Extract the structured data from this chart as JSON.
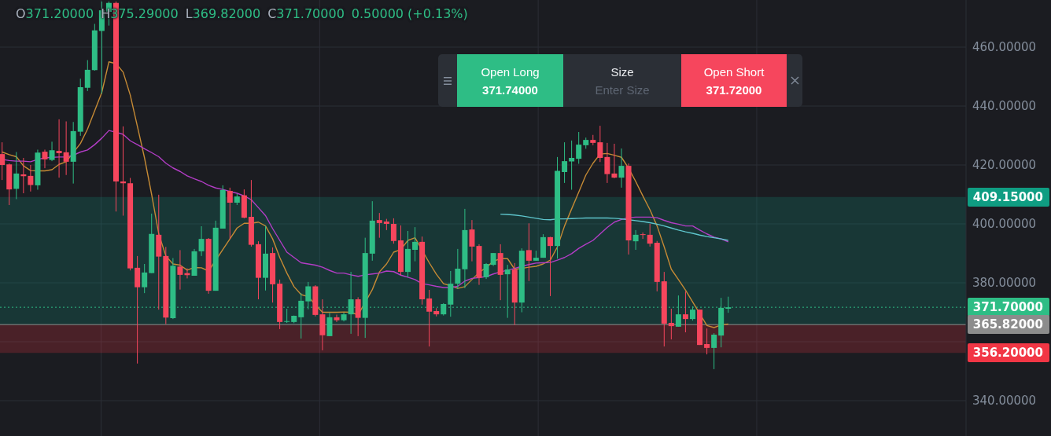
{
  "chart_data": {
    "type": "candlestick",
    "categories": [
      null,
      null,
      null,
      null,
      null,
      null,
      null,
      null,
      null,
      null,
      null,
      null,
      null,
      null,
      null,
      null,
      null,
      null,
      null,
      null,
      null,
      null,
      null,
      null,
      null,
      null,
      null,
      null,
      null,
      null,
      null,
      null,
      null,
      null,
      null,
      null,
      null,
      null,
      null,
      null,
      null,
      null,
      null,
      null,
      null,
      null,
      null,
      null,
      null,
      null,
      null,
      null,
      null,
      null,
      null,
      null,
      null,
      null,
      null,
      null,
      null,
      null,
      null,
      null,
      null,
      null,
      null,
      null,
      null,
      null,
      null,
      null,
      null,
      null,
      null,
      null,
      null,
      null,
      null,
      null,
      null,
      null,
      null,
      null,
      null,
      null,
      null,
      null,
      null,
      null,
      null,
      null,
      null,
      null,
      null,
      null,
      null,
      null,
      null,
      null,
      null,
      null,
      null
    ],
    "ohlc": [
      [
        423.7,
        427.7,
        414.9,
        420.0
      ],
      [
        420.2,
        420.5,
        406.4,
        411.7
      ],
      [
        411.9,
        424.4,
        408.4,
        417.1
      ],
      [
        416.8,
        422.4,
        410.4,
        416.2
      ],
      [
        416.3,
        420.0,
        411.0,
        413.2
      ],
      [
        413.1,
        425.2,
        411.6,
        424.2
      ],
      [
        424.5,
        425.2,
        418.9,
        421.9
      ],
      [
        421.7,
        427.9,
        421.3,
        425.0
      ],
      [
        424.8,
        435.5,
        415.7,
        424.0
      ],
      [
        424.3,
        434.8,
        416.6,
        421.1
      ],
      [
        421.1,
        434.6,
        413.7,
        431.5
      ],
      [
        431.3,
        449.3,
        429.9,
        446.4
      ],
      [
        446.2,
        455.6,
        445.1,
        452.3
      ],
      [
        452.2,
        467.9,
        452.0,
        465.7
      ],
      [
        465.5,
        475.5,
        444.2,
        472.5
      ],
      [
        472.0,
        475.5,
        467.3,
        475.0
      ],
      [
        475.0,
        475.5,
        404.2,
        414.4
      ],
      [
        414.4,
        433.1,
        402.8,
        413.8
      ],
      [
        413.8,
        415.6,
        384.2,
        384.9
      ],
      [
        385.1,
        389.1,
        352.6,
        378.5
      ],
      [
        378.5,
        386.4,
        376.5,
        383.5
      ],
      [
        383.3,
        403.5,
        383.3,
        396.6
      ],
      [
        396.3,
        409.9,
        370.9,
        388.9
      ],
      [
        389.1,
        392.2,
        366.0,
        368.2
      ],
      [
        368.0,
        388.4,
        367.7,
        385.8
      ],
      [
        385.5,
        391.1,
        377.7,
        382.7
      ],
      [
        383.3,
        384.9,
        381.5,
        382.6
      ],
      [
        382.4,
        391.5,
        382.4,
        390.7
      ],
      [
        390.7,
        399.2,
        389.1,
        394.9
      ],
      [
        394.9,
        395.2,
        376.3,
        377.3
      ],
      [
        377.3,
        401.1,
        377.3,
        398.7
      ],
      [
        398.4,
        413.1,
        398.4,
        411.5
      ],
      [
        411.2,
        412.3,
        394.9,
        407.2
      ],
      [
        407.2,
        410.2,
        406.4,
        409.3
      ],
      [
        409.7,
        411.7,
        401.9,
        402.1
      ],
      [
        402.4,
        414.9,
        392.3,
        392.9
      ],
      [
        393.1,
        394.1,
        374.4,
        381.7
      ],
      [
        381.7,
        399.3,
        377.4,
        389.9
      ],
      [
        390.1,
        392.0,
        373.3,
        379.5
      ],
      [
        379.7,
        381.1,
        364.3,
        366.7
      ],
      [
        366.8,
        371.2,
        366.4,
        367.0
      ],
      [
        366.7,
        368.9,
        366.3,
        368.8
      ],
      [
        368.3,
        376.5,
        361.1,
        373.9
      ],
      [
        373.7,
        380.3,
        371.0,
        378.8
      ],
      [
        378.8,
        379.2,
        368.6,
        369.1
      ],
      [
        369.3,
        374.4,
        357.1,
        362.2
      ],
      [
        361.9,
        369.8,
        361.9,
        368.3
      ],
      [
        368.3,
        369.2,
        366.7,
        367.3
      ],
      [
        367.3,
        369.9,
        366.9,
        369.3
      ],
      [
        369.3,
        383.7,
        362.7,
        374.4
      ],
      [
        374.4,
        375.1,
        361.9,
        368.1
      ],
      [
        368.1,
        395.3,
        361.3,
        390.1
      ],
      [
        389.9,
        407.7,
        387.5,
        401.1
      ],
      [
        401.3,
        403.7,
        395.3,
        400.3
      ],
      [
        400.8,
        401.7,
        397.9,
        400.0
      ],
      [
        400.0,
        401.9,
        393.3,
        394.2
      ],
      [
        394.4,
        399.5,
        382.6,
        383.7
      ],
      [
        383.7,
        397.6,
        381.9,
        391.5
      ],
      [
        391.2,
        398.9,
        387.3,
        393.9
      ],
      [
        393.9,
        395.7,
        372.6,
        374.4
      ],
      [
        374.7,
        377.6,
        358.4,
        370.2
      ],
      [
        370.4,
        371.4,
        368.6,
        369.3
      ],
      [
        369.3,
        373.1,
        368.9,
        372.8
      ],
      [
        372.6,
        384.0,
        368.5,
        379.7
      ],
      [
        379.7,
        391.5,
        377.9,
        384.8
      ],
      [
        384.6,
        405.1,
        378.2,
        397.9
      ],
      [
        398.1,
        401.3,
        387.3,
        392.3
      ],
      [
        392.5,
        393.1,
        379.3,
        381.7
      ],
      [
        381.9,
        386.7,
        381.3,
        386.4
      ],
      [
        386.1,
        390.1,
        385.7,
        390.1
      ],
      [
        390.1,
        393.1,
        374.1,
        382.7
      ],
      [
        382.9,
        386.1,
        368.1,
        384.5
      ],
      [
        384.5,
        386.7,
        365.7,
        373.3
      ],
      [
        373.3,
        391.7,
        370.0,
        390.9
      ],
      [
        391.1,
        400.2,
        380.6,
        387.5
      ],
      [
        387.5,
        390.9,
        387.5,
        388.5
      ],
      [
        388.5,
        396.5,
        388.5,
        395.5
      ],
      [
        395.5,
        395.6,
        375.5,
        392.5
      ],
      [
        392.5,
        422.7,
        388.2,
        418.0
      ],
      [
        417.6,
        427.7,
        413.9,
        421.3
      ],
      [
        421.2,
        428.3,
        411.6,
        422.4
      ],
      [
        422.1,
        431.2,
        420.4,
        426.9
      ],
      [
        426.7,
        429.3,
        425.5,
        428.5
      ],
      [
        428.5,
        430.2,
        426.7,
        427.5
      ],
      [
        427.7,
        433.3,
        421.0,
        422.4
      ],
      [
        422.7,
        427.5,
        413.9,
        416.9
      ],
      [
        417.1,
        427.2,
        415.5,
        415.7
      ],
      [
        415.7,
        425.6,
        412.3,
        419.7
      ],
      [
        419.7,
        420.5,
        389.6,
        394.4
      ],
      [
        394.1,
        397.9,
        391.2,
        396.3
      ],
      [
        396.5,
        397.1,
        394.9,
        396.3
      ],
      [
        396.3,
        400.0,
        392.3,
        393.3
      ],
      [
        393.6,
        394.2,
        377.1,
        380.3
      ],
      [
        380.5,
        383.7,
        358.4,
        366.1
      ],
      [
        366.4,
        371.2,
        360.8,
        365.3
      ],
      [
        365.1,
        375.7,
        365.1,
        369.3
      ],
      [
        369.3,
        377.1,
        363.2,
        367.7
      ],
      [
        367.7,
        372.0,
        367.2,
        370.9
      ],
      [
        370.9,
        370.9,
        358.9,
        358.9
      ],
      [
        359.2,
        364.5,
        355.7,
        357.9
      ],
      [
        357.9,
        362.9,
        350.7,
        362.4
      ],
      [
        362.1,
        374.9,
        358.1,
        371.5
      ],
      [
        371.2,
        375.29,
        369.82,
        371.7
      ]
    ],
    "colors": [
      "#f6465d",
      "#f6465d",
      "#2ebd85",
      "#f6465d",
      "#f6465d",
      "#2ebd85",
      "#f6465d",
      "#2ebd85",
      "#f6465d",
      "#f6465d",
      "#2ebd85",
      "#2ebd85",
      "#2ebd85",
      "#2ebd85",
      "#2ebd85",
      "#2ebd85",
      "#f6465d",
      "#f6465d",
      "#f6465d",
      "#f6465d",
      "#2ebd85",
      "#2ebd85",
      "#f6465d",
      "#f6465d",
      "#2ebd85",
      "#f6465d",
      "#f6465d",
      "#2ebd85",
      "#2ebd85",
      "#f6465d",
      "#2ebd85",
      "#2ebd85",
      "#f6465d",
      "#2ebd85",
      "#f6465d",
      "#f6465d",
      "#f6465d",
      "#2ebd85",
      "#f6465d",
      "#f6465d",
      "#2ebd85",
      "#2ebd85",
      "#2ebd85",
      "#2ebd85",
      "#f6465d",
      "#f6465d",
      "#2ebd85",
      "#f6465d",
      "#2ebd85",
      "#2ebd85",
      "#f6465d",
      "#2ebd85",
      "#2ebd85",
      "#f6465d",
      "#f6465d",
      "#f6465d",
      "#f6465d",
      "#2ebd85",
      "#2ebd85",
      "#f6465d",
      "#f6465d",
      "#f6465d",
      "#2ebd85",
      "#2ebd85",
      "#2ebd85",
      "#2ebd85",
      "#f6465d",
      "#f6465d",
      "#2ebd85",
      "#2ebd85",
      "#f6465d",
      "#2ebd85",
      "#f6465d",
      "#2ebd85",
      "#f6465d",
      "#2ebd85",
      "#2ebd85",
      "#f6465d",
      "#2ebd85",
      "#2ebd85",
      "#2ebd85",
      "#2ebd85",
      "#2ebd85",
      "#f6465d",
      "#f6465d",
      "#f6465d",
      "#f6465d",
      "#2ebd85",
      "#f6465d",
      "#2ebd85",
      "#f6465d",
      "#f6465d",
      "#f6465d",
      "#f6465d",
      "#f6465d",
      "#2ebd85",
      "#f6465d",
      "#2ebd85",
      "#f6465d",
      "#f6465d",
      "#2ebd85",
      "#2ebd85",
      "#2ebd85"
    ],
    "series": [
      {
        "type": "line",
        "color": "#c58a35",
        "values": [
          424.4,
          423.5,
          422.8,
          419.7,
          418.1,
          418,
          418,
          418.4,
          420.2,
          421.1,
          null,
          427.3,
          432.2,
          438.4,
          444.6,
          455,
          454.4,
          451.5,
          443.7,
          433.1,
          422.4,
          410,
          396.6,
          389.1,
          386.4,
          386,
          384.3,
          385.2,
          385.1,
          384,
          null,
          391.3,
          394.9,
          398.6,
          400.2,
          400.2,
          400.6,
          399.3,
          394.9,
          388.6,
          383.3,
          378.7,
          376,
          375.3,
          372.6,
          370,
          370,
          370,
          370.1,
          370,
          369.1,
          null,
          377.7,
          383.7,
          386.4,
          390.4,
          391.3,
          394.4,
          395.3,
          null,
          386.8,
          382.9,
          379.7,
          379,
          378.1,
          378.7,
          381.1,
          383.5,
          385.2,
          387.3,
          388.2,
          388.2,
          384.6,
          384.9,
          385.3,
          385.6,
          386.4,
          387.7,
          392.2,
          399.3,
          405.1,
          410.8,
          416.6,
          420.6,
          423.7,
          423.9,
          423.3,
          422.6,
          418.9,
          414.4,
          409.5,
          404.8,
          399.3,
          392.2,
          384.6,
          381.1,
          377.5,
          373.5,
          null,
          365.5,
          364.8,
          365.7,
          366
        ]
      },
      {
        "type": "line",
        "color": "#b33dc6",
        "values": [
          421.9,
          421.5,
          421.3,
          421.3,
          421.1,
          421.9,
          422.4,
          422.6,
          422.7,
          422.7,
          423.3,
          424.4,
          425.1,
          426.9,
          429.1,
          431.7,
          431.1,
          430.4,
          428.2,
          426.9,
          425.5,
          424.2,
          422.8,
          420.6,
          419,
          417.8,
          416.3,
          415.3,
          414.4,
          413.1,
          412.2,
          411.7,
          411,
          410.4,
          409.5,
          408.2,
          405.5,
          402.8,
          398.4,
          394.4,
          390.4,
          388.6,
          386.8,
          386.4,
          386,
          385.3,
          384.2,
          383.3,
          383.3,
          382.7,
          382.2,
          382.7,
          383,
          383.3,
          384,
          383.8,
          382.6,
          381.9,
          381.1,
          379.7,
          379.3,
          378.8,
          378.4,
          378.4,
          378.8,
          380.6,
          381.5,
          381.8,
          382.1,
          383,
          383.7,
          384.3,
          384.9,
          385.6,
          386.2,
          386.7,
          386.8,
          386.9,
          387.7,
          388.6,
          389.9,
          391.7,
          393.1,
          394.4,
          396.6,
          398.8,
          400.6,
          401.5,
          402.1,
          402.3,
          402.3,
          402.3,
          402.1,
          401.2,
          400.4,
          399.9,
          399.3,
          399.3,
          397.9,
          396.6,
          395.5,
          394.9,
          393.9
        ]
      },
      {
        "type": "line",
        "color": "#5ec5cc",
        "values": [
          null,
          null,
          null,
          null,
          null,
          null,
          null,
          null,
          null,
          null,
          null,
          null,
          null,
          null,
          null,
          null,
          null,
          null,
          null,
          null,
          null,
          null,
          null,
          null,
          null,
          null,
          null,
          null,
          null,
          null,
          null,
          null,
          null,
          null,
          null,
          null,
          null,
          null,
          null,
          null,
          null,
          null,
          null,
          null,
          null,
          null,
          null,
          null,
          null,
          null,
          null,
          null,
          null,
          null,
          null,
          null,
          null,
          null,
          null,
          null,
          null,
          null,
          null,
          null,
          null,
          null,
          null,
          null,
          null,
          null,
          403.3,
          403.2,
          403,
          402.7,
          402.3,
          401.9,
          401.5,
          401.4,
          401.7,
          401.7,
          401.8,
          401.9,
          402,
          402,
          402,
          402,
          401.9,
          401.7,
          401.4,
          401.1,
          400.8,
          400.4,
          399.9,
          399.3,
          398.6,
          397.9,
          397.3,
          396.8,
          396.2,
          395.7,
          395.3,
          394.9,
          394.4
        ]
      }
    ],
    "ylim": [
      328,
      476
    ],
    "yticks": [
      {
        "value": 340,
        "label": "340.00000"
      },
      {
        "value": 360,
        "label": null
      },
      {
        "value": 380,
        "label": "380.00000"
      },
      {
        "value": 400,
        "label": "400.00000"
      },
      {
        "value": 420,
        "label": "420.00000"
      },
      {
        "value": 440,
        "label": "440.00000"
      },
      {
        "value": 460,
        "label": "460.00000"
      }
    ],
    "tick_labels": "y",
    "grid": true,
    "ref_lines": [
      {
        "axis": "y",
        "value": 371.7,
        "label": "371.70000",
        "color": "#2ebd85",
        "line_style": "dotted"
      },
      {
        "axis": "y",
        "value": 365.82,
        "label": "365.82000",
        "color": "#8c8c8c",
        "line_style": "solid"
      }
    ],
    "bands": [
      {
        "axis": "y",
        "from": 365.82,
        "to": 409.15,
        "label": "409.15000",
        "color": "#0f9d82"
      },
      {
        "axis": "y",
        "from": 365.82,
        "to": 356.2,
        "label": "356.20000",
        "color": "#f23645"
      }
    ],
    "annotations": [
      "O",
      "371.20000",
      "H",
      "375.29000",
      "L",
      "369.82000",
      "C",
      "371.70000",
      "0.50000 (+0.13%)",
      "Open Long",
      "371.74000",
      "Size",
      "Enter Size",
      "Open Short",
      "371.72000"
    ]
  }
}
